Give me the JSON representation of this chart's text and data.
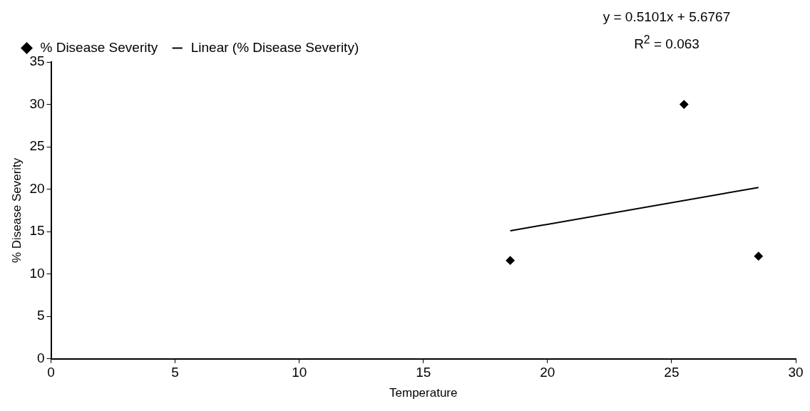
{
  "chart_data": {
    "type": "scatter",
    "xlabel": "Temperature",
    "ylabel": "% Disease Severity",
    "series": [
      {
        "name": "% Disease Severity",
        "type": "scatter",
        "color": "#000000",
        "marker": "diamond",
        "x": [
          18.5,
          25.5,
          28.5
        ],
        "values": [
          11.6,
          30,
          12.1
        ]
      },
      {
        "name": "Linear (% Disease Severity)",
        "type": "line",
        "color": "#000000",
        "marker": "none",
        "line_style": "solid",
        "x": [
          18.5,
          28.5
        ],
        "values": [
          15.1,
          20.2
        ]
      }
    ],
    "annotations": [
      "y = 0.5101x + 5.6767",
      "R$^{2}$ = 0.063"
    ],
    "xlim": [
      0,
      30
    ],
    "xticks": [
      0,
      5,
      10,
      15,
      20,
      25,
      30
    ],
    "ylim": [
      0,
      35
    ],
    "yticks": [
      0,
      5,
      10,
      15,
      20,
      25,
      30,
      35
    ],
    "grid": false,
    "legend": "top"
  }
}
